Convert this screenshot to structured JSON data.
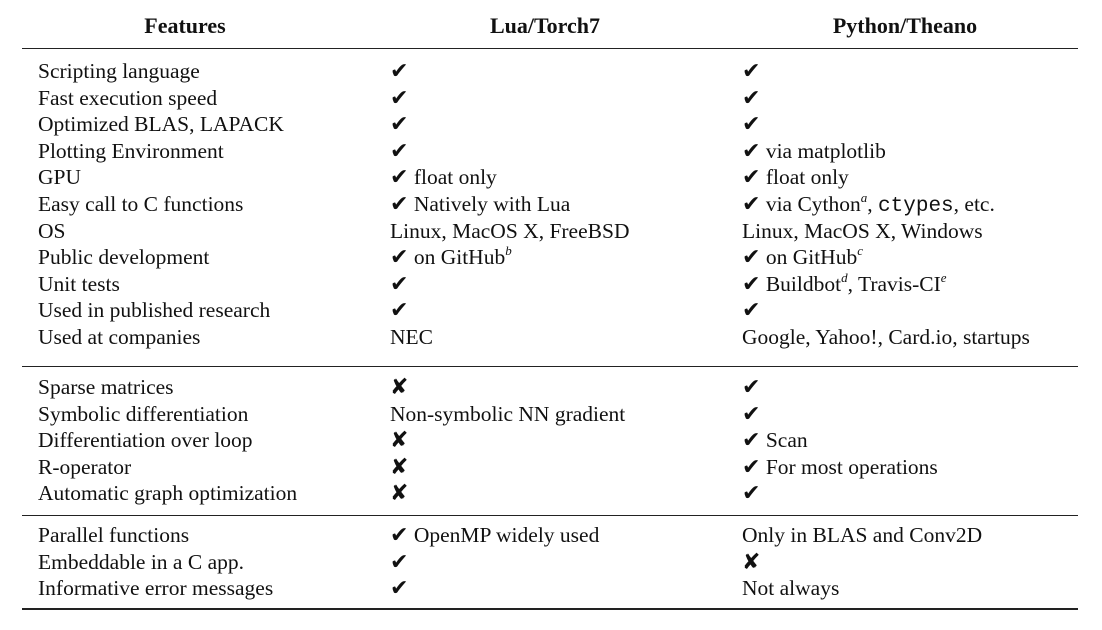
{
  "headers": [
    "Features",
    "Lua/Torch7",
    "Python/Theano"
  ],
  "groups": [
    [
      {
        "feature": "Scripting language",
        "torch": [
          {
            "t": "✔",
            "k": "chk"
          }
        ],
        "theano": [
          {
            "t": "✔",
            "k": "chk"
          }
        ]
      },
      {
        "feature": "Fast execution speed",
        "torch": [
          {
            "t": "✔",
            "k": "chk"
          }
        ],
        "theano": [
          {
            "t": "✔",
            "k": "chk"
          }
        ]
      },
      {
        "feature": "Optimized BLAS, LAPACK",
        "torch": [
          {
            "t": "✔",
            "k": "chk"
          }
        ],
        "theano": [
          {
            "t": "✔",
            "k": "chk"
          }
        ]
      },
      {
        "feature": "Plotting Environment",
        "torch": [
          {
            "t": "✔",
            "k": "chk"
          }
        ],
        "theano": [
          {
            "t": "✔",
            "k": "chk"
          },
          {
            "t": " via matplotlib"
          }
        ]
      },
      {
        "feature": "GPU",
        "torch": [
          {
            "t": "✔",
            "k": "chk"
          },
          {
            "t": " float only"
          }
        ],
        "theano": [
          {
            "t": "✔",
            "k": "chk"
          },
          {
            "t": " float only"
          }
        ]
      },
      {
        "feature": "Easy call to C functions",
        "torch": [
          {
            "t": "✔",
            "k": "chk"
          },
          {
            "t": " Natively with Lua"
          }
        ],
        "theano": [
          {
            "t": "✔",
            "k": "chk"
          },
          {
            "t": " via Cython"
          },
          {
            "t": "a",
            "k": "sup"
          },
          {
            "t": ", "
          },
          {
            "t": "ctypes",
            "k": "mono"
          },
          {
            "t": ", etc."
          }
        ]
      },
      {
        "feature": "OS",
        "torch": [
          {
            "t": "Linux, MacOS X, FreeBSD"
          }
        ],
        "theano": [
          {
            "t": "Linux, MacOS X, Windows"
          }
        ]
      },
      {
        "feature": "Public development",
        "torch": [
          {
            "t": "✔",
            "k": "chk"
          },
          {
            "t": " on GitHub"
          },
          {
            "t": "b",
            "k": "sup"
          }
        ],
        "theano": [
          {
            "t": "✔",
            "k": "chk"
          },
          {
            "t": " on GitHub"
          },
          {
            "t": "c",
            "k": "sup"
          }
        ]
      },
      {
        "feature": "Unit tests",
        "torch": [
          {
            "t": "✔",
            "k": "chk"
          }
        ],
        "theano": [
          {
            "t": "✔",
            "k": "chk"
          },
          {
            "t": " Buildbot"
          },
          {
            "t": "d",
            "k": "sup"
          },
          {
            "t": ", Travis-CI"
          },
          {
            "t": "e",
            "k": "sup"
          }
        ]
      },
      {
        "feature": "Used in published research",
        "torch": [
          {
            "t": "✔",
            "k": "chk"
          }
        ],
        "theano": [
          {
            "t": "✔",
            "k": "chk"
          }
        ]
      },
      {
        "feature": "Used at companies",
        "torch": [
          {
            "t": "NEC"
          }
        ],
        "theano": [
          {
            "t": "Google, Yahoo!, Card.io, startups"
          }
        ]
      }
    ],
    [
      {
        "feature": "Sparse matrices",
        "torch": [
          {
            "t": "✘",
            "k": "chk"
          }
        ],
        "theano": [
          {
            "t": "✔",
            "k": "chk"
          }
        ]
      },
      {
        "feature": "Symbolic differentiation",
        "torch": [
          {
            "t": "Non-symbolic NN gradient"
          }
        ],
        "theano": [
          {
            "t": "✔",
            "k": "chk"
          }
        ]
      },
      {
        "feature": "Differentiation over loop",
        "torch": [
          {
            "t": "✘",
            "k": "chk"
          }
        ],
        "theano": [
          {
            "t": "✔",
            "k": "chk"
          },
          {
            "t": " Scan"
          }
        ]
      },
      {
        "feature": "R-operator",
        "torch": [
          {
            "t": "✘",
            "k": "chk"
          }
        ],
        "theano": [
          {
            "t": "✔",
            "k": "chk"
          },
          {
            "t": " For most operations"
          }
        ]
      },
      {
        "feature": "Automatic graph optimization",
        "torch": [
          {
            "t": "✘",
            "k": "chk"
          }
        ],
        "theano": [
          {
            "t": "✔",
            "k": "chk"
          }
        ]
      }
    ],
    [
      {
        "feature": "Parallel functions",
        "torch": [
          {
            "t": "✔",
            "k": "chk"
          },
          {
            "t": " OpenMP widely used"
          }
        ],
        "theano": [
          {
            "t": "Only in BLAS and Conv2D"
          }
        ]
      },
      {
        "feature": "Embeddable in a C app.",
        "torch": [
          {
            "t": "✔",
            "k": "chk"
          }
        ],
        "theano": [
          {
            "t": "✘",
            "k": "chk"
          }
        ]
      },
      {
        "feature": "Informative error messages",
        "torch": [
          {
            "t": "✔",
            "k": "chk"
          }
        ],
        "theano": [
          {
            "t": "Not always"
          }
        ]
      }
    ]
  ]
}
